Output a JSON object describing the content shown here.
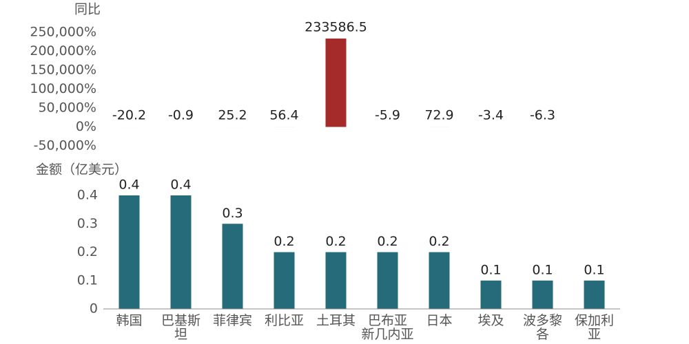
{
  "chart_data": [
    {
      "type": "bar",
      "y_label": "同比",
      "color": "#a52a2a",
      "values": [
        -20.2,
        -0.9,
        25.2,
        56.4,
        233586.5,
        -5.9,
        72.9,
        -3.4,
        -6.3,
        null
      ],
      "ylim": [
        -50000,
        250000
      ],
      "yticks": [
        {
          "value": -50000,
          "label": "-50,000%"
        },
        {
          "value": 0,
          "label": "0%"
        },
        {
          "value": 50000,
          "label": "50,000%"
        },
        {
          "value": 100000,
          "label": "100,000%"
        },
        {
          "value": 150000,
          "label": "150,000%"
        },
        {
          "value": 200000,
          "label": "200,000%"
        },
        {
          "value": 250000,
          "label": "250,000%"
        }
      ]
    },
    {
      "type": "bar",
      "y_label": "金额（亿美元）",
      "color": "#266b7a",
      "categories": [
        "韩国",
        "巴基斯\n坦",
        "菲律宾",
        "利比亚",
        "土耳其",
        "巴布亚\n新几内亚",
        "日本",
        "埃及",
        "波多黎\n各",
        "保加利\n亚"
      ],
      "values": [
        0.4,
        0.4,
        0.3,
        0.2,
        0.2,
        0.2,
        0.2,
        0.1,
        0.1,
        0.1
      ],
      "ylim": [
        0,
        0.4
      ],
      "yticks": [
        0,
        0.1,
        0.2,
        0.3,
        0.4
      ]
    }
  ]
}
